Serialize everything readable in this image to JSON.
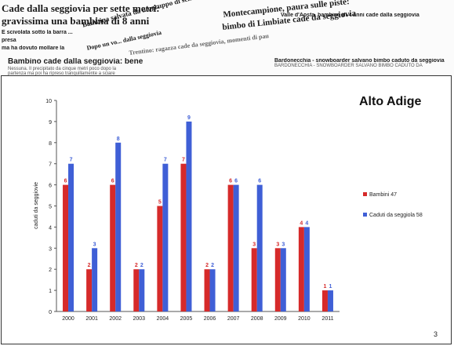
{
  "headlines": [
    {
      "id": "h1",
      "title": "Cade dalla seggiovia per sette metri:",
      "sub": ""
    },
    {
      "id": "h2",
      "title": "gravissima una bambina di 8 anni",
      "sub": ""
    },
    {
      "id": "h3",
      "title": "È scivolata sotto la barra ...",
      "sub": ""
    },
    {
      "id": "h4",
      "title": "presa",
      "sub": ""
    },
    {
      "id": "h5",
      "title": "ma ha dovuto mollare la",
      "sub": ""
    },
    {
      "id": "h6",
      "title": "Bambina salvata da un gruppo di sciatori",
      "sub": ""
    },
    {
      "id": "h7",
      "title": "Dopo un vo... dalla seggiovia",
      "sub": ""
    },
    {
      "id": "h8",
      "title": "Trentino: ragazza cade da seggiovia, momenti di paura",
      "sub": ""
    },
    {
      "id": "h9",
      "title": "Montecampione, paura sulle piste:",
      "sub": ""
    },
    {
      "id": "h10",
      "title": "bimbo di Limbiate cade da seggiovia",
      "sub": ""
    },
    {
      "id": "h11",
      "title": "Valle d'Aosta, bambino di 4 anni cade dalla seggiovia",
      "sub": ""
    },
    {
      "id": "h12",
      "title": "Bambino cade dalla seggiovia: bene",
      "sub": "Nessuna. Il precipitato da cinque metri poco dopo la partenza ma poi ha ripreso tranquillamente a sciare"
    },
    {
      "id": "h13",
      "title": "Bardonecchia - snowboarder salvano bimbo caduto da seggiovia",
      "sub": "BARDONECCHIA - SNOWBOARDER SALVANO BIMBO CADUTO DA"
    }
  ],
  "slide": {
    "region_title": "Alto Adige",
    "page_number": "3"
  },
  "chart_data": {
    "type": "bar",
    "categories": [
      "2000",
      "2001",
      "2002",
      "2003",
      "2004",
      "2005",
      "2006",
      "2007",
      "2008",
      "2009",
      "2010",
      "2011"
    ],
    "series": [
      {
        "name": "Bambini 47",
        "color": "#d62a2a",
        "values": [
          6,
          2,
          6,
          2,
          5,
          7,
          2,
          6,
          3,
          3,
          4,
          1
        ]
      },
      {
        "name": "Caduti da seggiola 58",
        "color": "#3f5fd6",
        "values": [
          7,
          3,
          8,
          2,
          7,
          9,
          2,
          6,
          6,
          3,
          4,
          1
        ]
      }
    ],
    "ylabel": "caduti da seggiovie",
    "ylim": [
      0,
      10
    ],
    "yticks": [
      0,
      1,
      2,
      3,
      4,
      5,
      6,
      7,
      8,
      9,
      10
    ],
    "legend_position": "right",
    "grid": false
  }
}
